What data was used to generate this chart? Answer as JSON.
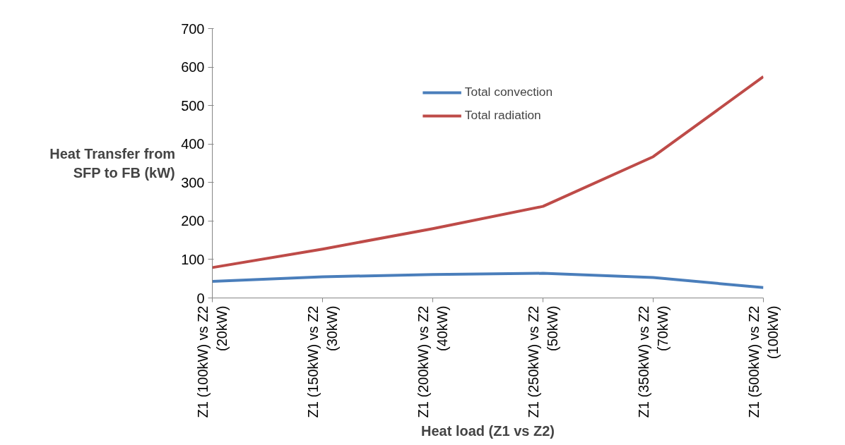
{
  "chart_data": {
    "type": "line",
    "xlabel": "Heat load (Z1 vs Z2)",
    "ylabel": "Heat Transfer from\nSFP to FB (kW)",
    "categories": [
      "Z1 (100kW) vs Z2\n(20kW)",
      "Z1 (150kW) vs Z2\n(30kW)",
      "Z1 (200kW) vs Z2\n(40kW)",
      "Z1 (250kW) vs Z2\n(50kW)",
      "Z1 (350kW) vs Z2\n(70kW)",
      "Z1 (500kW) vs Z2\n(100kW)"
    ],
    "series": [
      {
        "name": "Total convection",
        "color": "#4a7ebb",
        "values": [
          43,
          55,
          61,
          64,
          53,
          27
        ]
      },
      {
        "name": "Total radiation",
        "color": "#be4b48",
        "values": [
          79,
          127,
          180,
          238,
          367,
          575
        ]
      }
    ],
    "ylim": [
      0,
      700
    ],
    "yticks": [
      0,
      100,
      200,
      300,
      400,
      500,
      600,
      700
    ],
    "grid": false,
    "legend": "top",
    "marker": "none",
    "line_style": "solid"
  }
}
